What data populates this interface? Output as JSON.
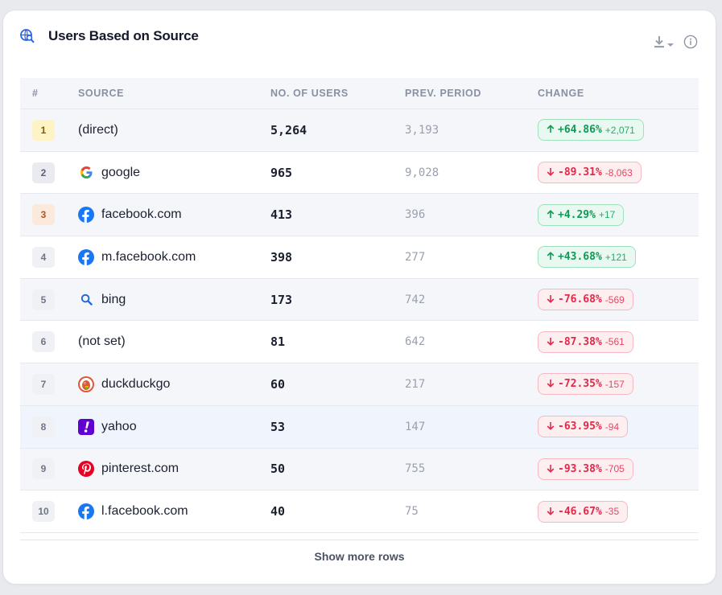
{
  "widget": {
    "title": "Users Based on Source",
    "title_icon": "search-globe-icon",
    "download_icon": "download-icon",
    "info_icon": "info-icon"
  },
  "table": {
    "headers": {
      "rank": "#",
      "source": "SOURCE",
      "users": "NO. OF USERS",
      "prev": "PREV. PERIOD",
      "change": "CHANGE"
    },
    "rows": [
      {
        "rank": "1",
        "source": "(direct)",
        "icon": "",
        "users": "5,264",
        "prev": "3,193",
        "pct": "+64.86%",
        "abs": "+2,071",
        "dir": "up"
      },
      {
        "rank": "2",
        "source": "google",
        "icon": "google-icon",
        "users": "965",
        "prev": "9,028",
        "pct": "-89.31%",
        "abs": "-8,063",
        "dir": "down"
      },
      {
        "rank": "3",
        "source": "facebook.com",
        "icon": "facebook-icon",
        "users": "413",
        "prev": "396",
        "pct": "+4.29%",
        "abs": "+17",
        "dir": "up"
      },
      {
        "rank": "4",
        "source": "m.facebook.com",
        "icon": "facebook-icon",
        "users": "398",
        "prev": "277",
        "pct": "+43.68%",
        "abs": "+121",
        "dir": "up"
      },
      {
        "rank": "5",
        "source": "bing",
        "icon": "bing-search-icon",
        "users": "173",
        "prev": "742",
        "pct": "-76.68%",
        "abs": "-569",
        "dir": "down"
      },
      {
        "rank": "6",
        "source": "(not set)",
        "icon": "",
        "users": "81",
        "prev": "642",
        "pct": "-87.38%",
        "abs": "-561",
        "dir": "down"
      },
      {
        "rank": "7",
        "source": "duckduckgo",
        "icon": "duckduckgo-icon",
        "users": "60",
        "prev": "217",
        "pct": "-72.35%",
        "abs": "-157",
        "dir": "down"
      },
      {
        "rank": "8",
        "source": "yahoo",
        "icon": "yahoo-icon",
        "users": "53",
        "prev": "147",
        "pct": "-63.95%",
        "abs": "-94",
        "dir": "down"
      },
      {
        "rank": "9",
        "source": "pinterest.com",
        "icon": "pinterest-icon",
        "users": "50",
        "prev": "755",
        "pct": "-93.38%",
        "abs": "-705",
        "dir": "down"
      },
      {
        "rank": "10",
        "source": "l.facebook.com",
        "icon": "facebook-icon",
        "users": "40",
        "prev": "75",
        "pct": "-46.67%",
        "abs": "-35",
        "dir": "down"
      }
    ]
  },
  "footer": {
    "show_more_label": "Show more rows"
  },
  "colors": {
    "up_text": "#0f9a55",
    "down_text": "#e2294a",
    "accent": "#2563eb"
  }
}
